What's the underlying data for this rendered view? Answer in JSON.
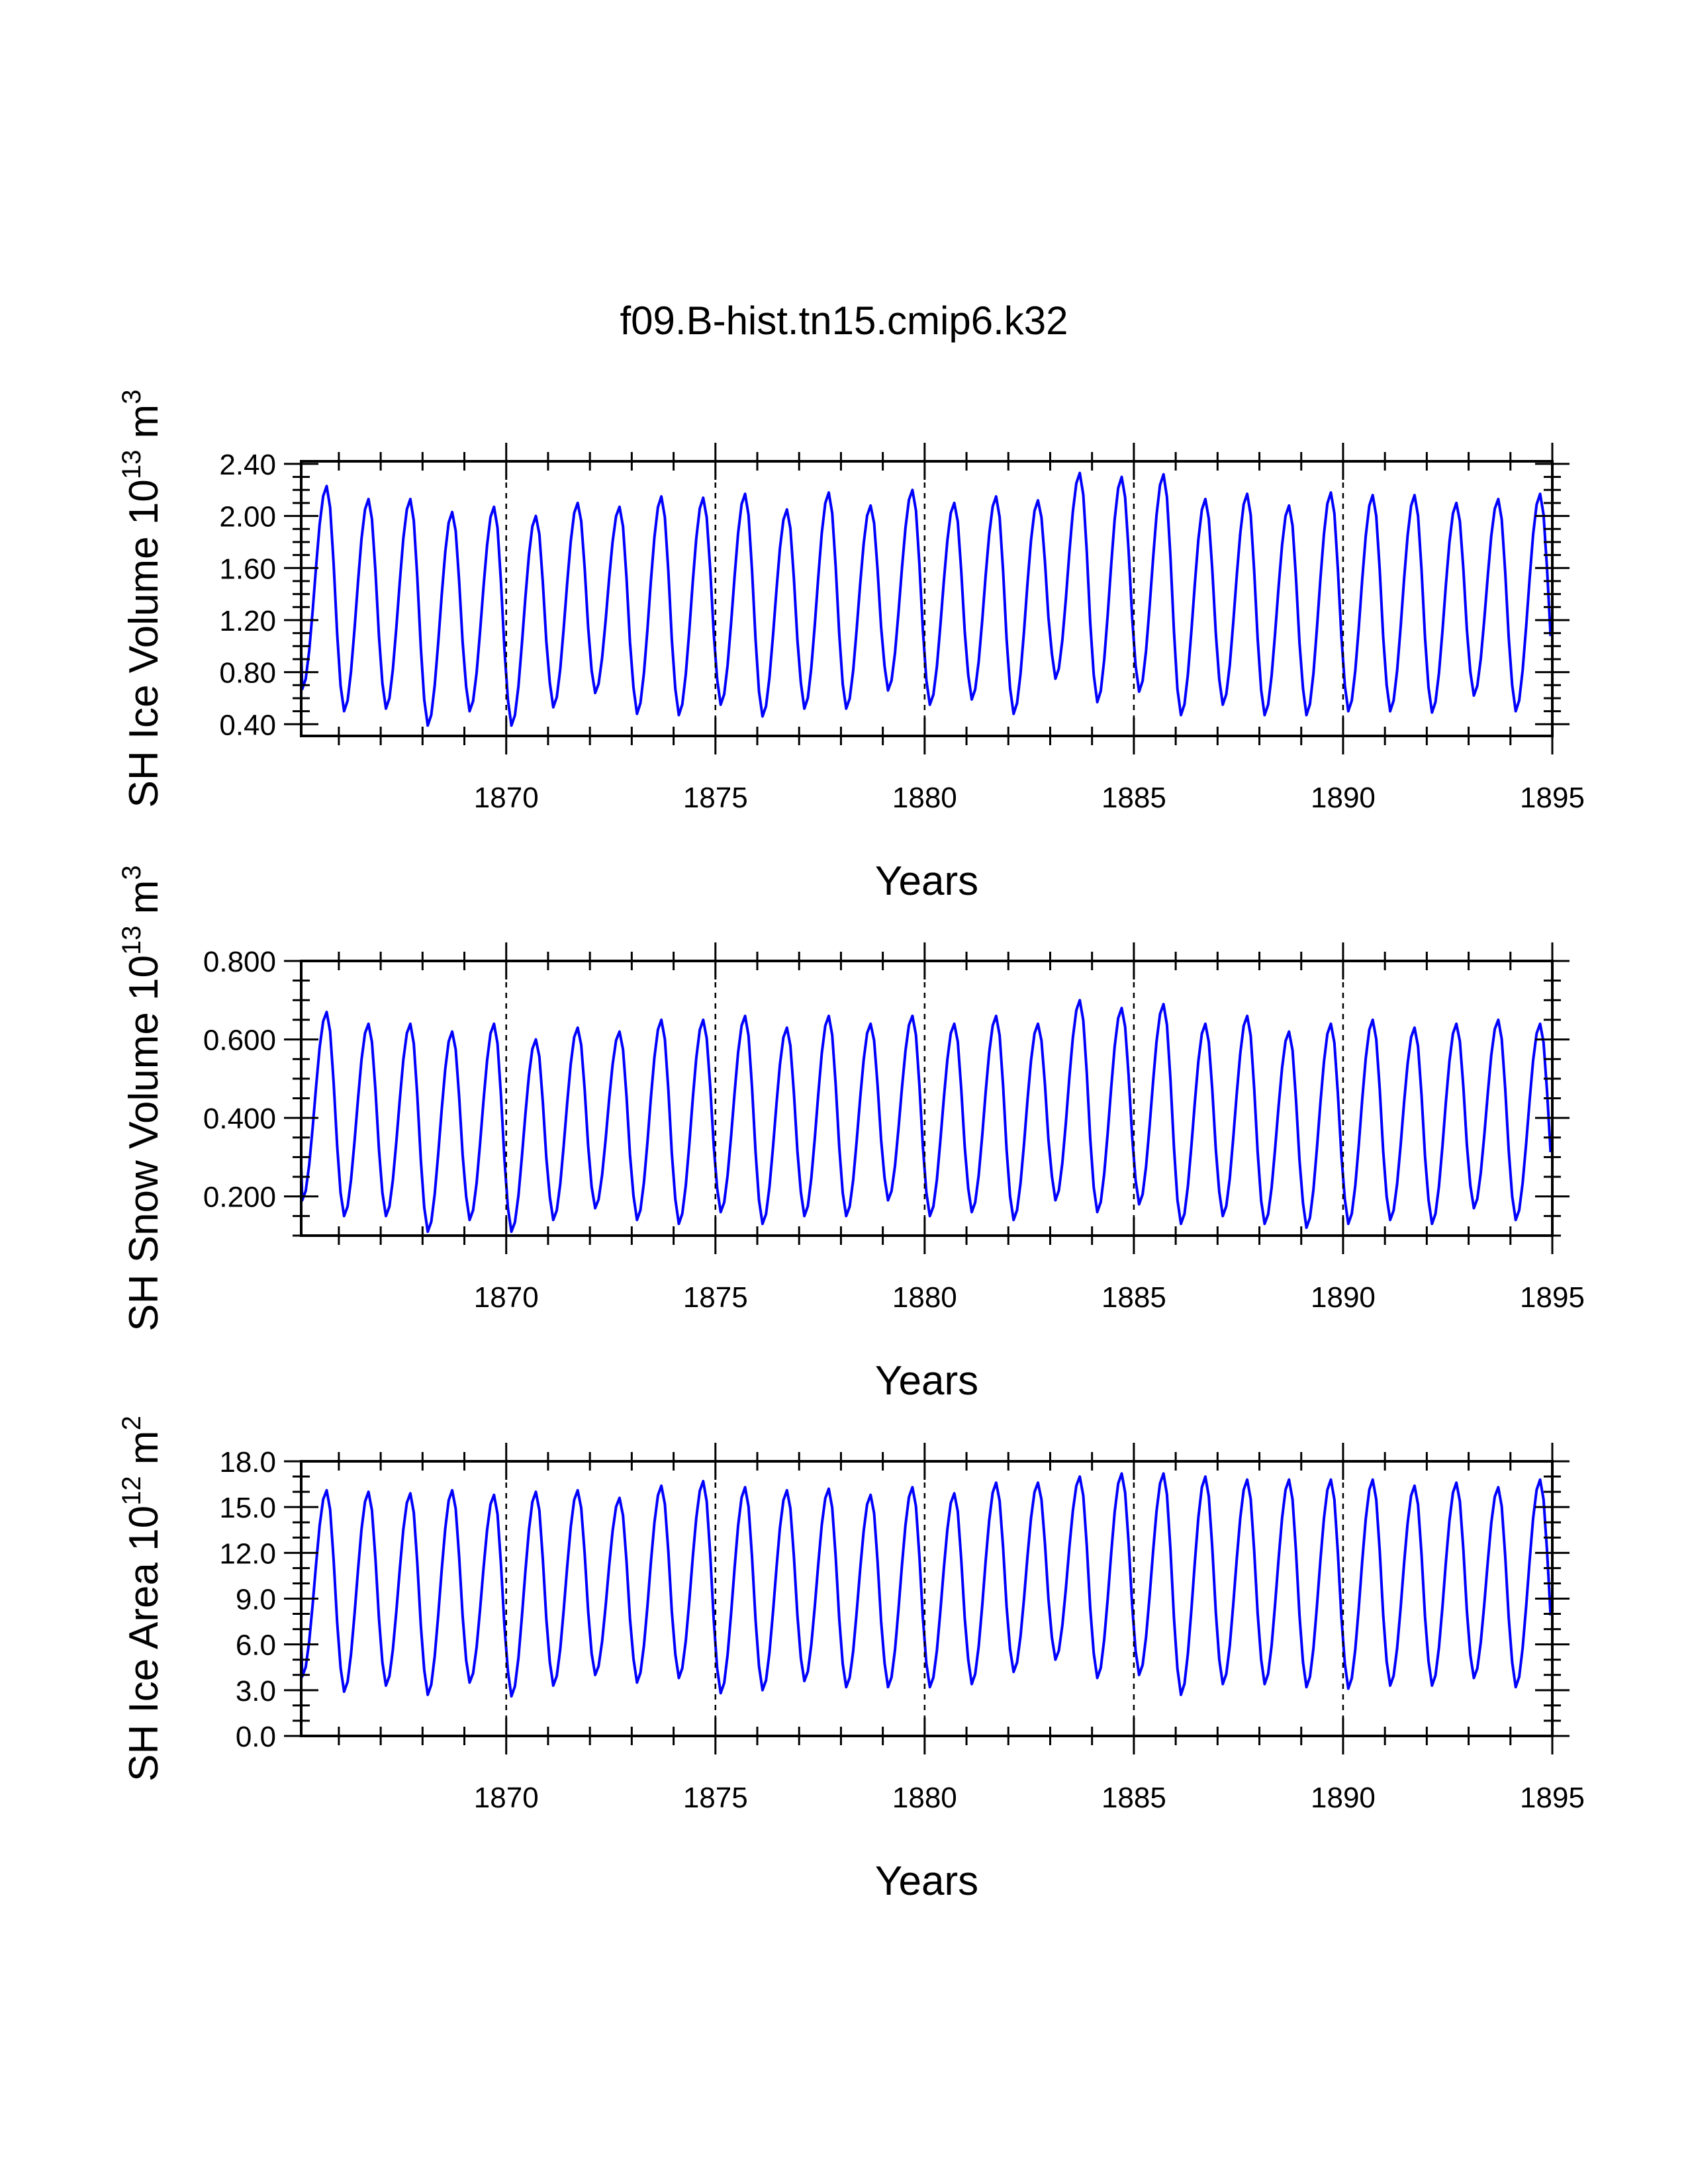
{
  "title": "f09.B-hist.tn15.cmip6.k32",
  "colors": {
    "series": "#0000ff",
    "axes": "#000000"
  },
  "chart_data": [
    {
      "type": "line",
      "name": "ice-volume",
      "ylabel": "SH Ice Volume 10",
      "ylabel_exp": "13",
      "ylabel_unit": " m",
      "ylabel_unit_exp": "3",
      "xlabel": "Years",
      "xlim": [
        1865.1,
        1895.0
      ],
      "ylim": [
        0.31,
        2.42
      ],
      "xticks": [
        1870,
        1875,
        1880,
        1885,
        1890,
        1895
      ],
      "xtick_labels": [
        "1870",
        "1875",
        "1880",
        "1885",
        "1890",
        "1895"
      ],
      "yticks": [
        0.4,
        0.8,
        1.2,
        1.6,
        2.0,
        2.4
      ],
      "ytick_labels": [
        "0.40",
        "0.80",
        "1.20",
        "1.60",
        "2.00",
        "2.40"
      ],
      "yminor_step": 0.1,
      "series_start_year": 1865.1,
      "annual_max": [
        2.23,
        2.13,
        2.13,
        2.03,
        2.07,
        2.0,
        2.1,
        2.07,
        2.15,
        2.14,
        2.17,
        2.05,
        2.18,
        2.08,
        2.2,
        2.1,
        2.15,
        2.12,
        2.33,
        2.3,
        2.32,
        2.13,
        2.17,
        2.08,
        2.18,
        2.16,
        2.16,
        2.1,
        2.13,
        2.17
      ],
      "annual_min": [
        0.67,
        0.5,
        0.52,
        0.39,
        0.5,
        0.39,
        0.53,
        0.64,
        0.48,
        0.47,
        0.55,
        0.46,
        0.52,
        0.52,
        0.66,
        0.55,
        0.59,
        0.48,
        0.75,
        0.57,
        0.65,
        0.47,
        0.55,
        0.47,
        0.47,
        0.5,
        0.5,
        0.49,
        0.62,
        0.5
      ]
    },
    {
      "type": "line",
      "name": "snow-volume",
      "ylabel": "SH Snow Volume 10",
      "ylabel_exp": "13",
      "ylabel_unit": " m",
      "ylabel_unit_exp": "3",
      "xlabel": "Years",
      "xlim": [
        1865.1,
        1895.0
      ],
      "ylim": [
        0.1,
        0.8
      ],
      "xticks": [
        1870,
        1875,
        1880,
        1885,
        1890,
        1895
      ],
      "xtick_labels": [
        "1870",
        "1875",
        "1880",
        "1885",
        "1890",
        "1895"
      ],
      "yticks": [
        0.2,
        0.4,
        0.6,
        0.8
      ],
      "ytick_labels": [
        "0.200",
        "0.400",
        "0.600",
        "0.800"
      ],
      "yminor_step": 0.05,
      "series_start_year": 1865.1,
      "annual_max": [
        0.67,
        0.64,
        0.64,
        0.62,
        0.64,
        0.6,
        0.63,
        0.62,
        0.65,
        0.65,
        0.66,
        0.63,
        0.66,
        0.64,
        0.66,
        0.64,
        0.66,
        0.64,
        0.7,
        0.68,
        0.69,
        0.64,
        0.66,
        0.62,
        0.64,
        0.65,
        0.63,
        0.64,
        0.65,
        0.64
      ],
      "annual_min": [
        0.19,
        0.15,
        0.15,
        0.11,
        0.14,
        0.11,
        0.14,
        0.17,
        0.14,
        0.13,
        0.16,
        0.13,
        0.15,
        0.15,
        0.19,
        0.15,
        0.16,
        0.14,
        0.19,
        0.16,
        0.18,
        0.13,
        0.15,
        0.13,
        0.12,
        0.13,
        0.14,
        0.13,
        0.17,
        0.14
      ]
    },
    {
      "type": "line",
      "name": "ice-area",
      "ylabel": "SH Ice Area 10",
      "ylabel_exp": "12",
      "ylabel_unit": " m",
      "ylabel_unit_exp": "2",
      "xlabel": "Years",
      "xlim": [
        1865.1,
        1895.0
      ],
      "ylim": [
        0.0,
        18.0
      ],
      "xticks": [
        1870,
        1875,
        1880,
        1885,
        1890,
        1895
      ],
      "xtick_labels": [
        "1870",
        "1875",
        "1880",
        "1885",
        "1890",
        "1895"
      ],
      "yticks": [
        0,
        3,
        6,
        9,
        12,
        15,
        18
      ],
      "ytick_labels": [
        "0.0",
        "3.0",
        "6.0",
        "9.0",
        "12.0",
        "15.0",
        "18.0"
      ],
      "yminor_step": 1.0,
      "series_start_year": 1865.1,
      "annual_max": [
        16.1,
        16.0,
        15.9,
        16.1,
        15.8,
        16.0,
        16.1,
        15.6,
        16.4,
        16.7,
        16.3,
        16.1,
        16.2,
        15.8,
        16.3,
        15.9,
        16.6,
        16.6,
        17.0,
        17.2,
        17.2,
        17.0,
        16.8,
        16.8,
        16.8,
        16.8,
        16.4,
        16.6,
        16.3,
        16.8
      ],
      "annual_min": [
        3.9,
        2.9,
        3.3,
        2.7,
        3.5,
        2.6,
        3.3,
        4.0,
        3.5,
        3.8,
        2.8,
        3.0,
        3.6,
        3.2,
        3.2,
        3.2,
        3.4,
        4.2,
        5.0,
        3.8,
        4.0,
        2.7,
        3.4,
        3.4,
        3.2,
        3.1,
        3.3,
        3.3,
        3.8,
        3.2
      ]
    }
  ]
}
